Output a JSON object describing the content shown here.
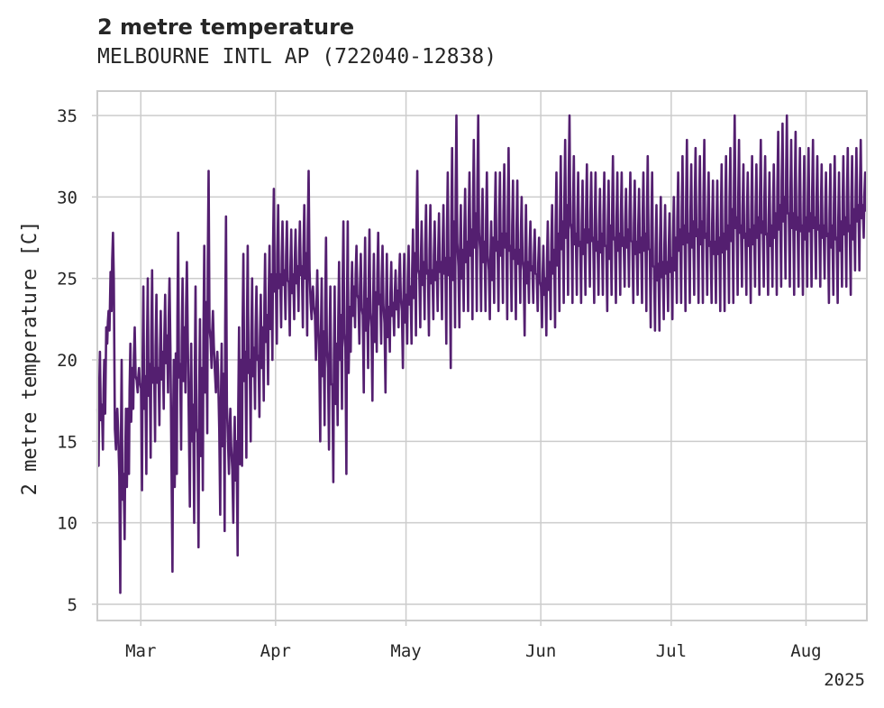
{
  "chart_data": {
    "type": "line",
    "title": "2 metre temperature",
    "subtitle": "MELBOURNE INTL AP (722040-12838)",
    "ylabel": "2 metre temperature [C]",
    "xlabel": "",
    "year_label": "2025",
    "xlim": [
      "2025-02-19",
      "2025-08-15"
    ],
    "ylim": [
      4,
      36.5
    ],
    "grid": true,
    "legend": "none",
    "line_color": "#541f70",
    "y_ticks": [
      5,
      10,
      15,
      20,
      25,
      30,
      35
    ],
    "x_ticks": [
      {
        "date": "2025-03-01",
        "label": "Mar"
      },
      {
        "date": "2025-04-01",
        "label": "Apr"
      },
      {
        "date": "2025-05-01",
        "label": "May"
      },
      {
        "date": "2025-06-01",
        "label": "Jun"
      },
      {
        "date": "2025-07-01",
        "label": "Jul"
      },
      {
        "date": "2025-08-01",
        "label": "Aug"
      }
    ],
    "series": [
      {
        "x": [
          "2025-02-19",
          "2025-02-20",
          "2025-02-21",
          "2025-02-22",
          "2025-02-23",
          "2025-02-24",
          "2025-02-25",
          "2025-02-26",
          "2025-02-27",
          "2025-02-28",
          "2025-03-01",
          "2025-03-02",
          "2025-03-03",
          "2025-03-04",
          "2025-03-05",
          "2025-03-06",
          "2025-03-07",
          "2025-03-08",
          "2025-03-09",
          "2025-03-10",
          "2025-03-11",
          "2025-03-12",
          "2025-03-13",
          "2025-03-14",
          "2025-03-15",
          "2025-03-16",
          "2025-03-17",
          "2025-03-18",
          "2025-03-19",
          "2025-03-20",
          "2025-03-21",
          "2025-03-22",
          "2025-03-23",
          "2025-03-24",
          "2025-03-25",
          "2025-03-26",
          "2025-03-27",
          "2025-03-28",
          "2025-03-29",
          "2025-03-30",
          "2025-03-31",
          "2025-04-01",
          "2025-04-02",
          "2025-04-03",
          "2025-04-04",
          "2025-04-05",
          "2025-04-06",
          "2025-04-07",
          "2025-04-08",
          "2025-04-09",
          "2025-04-10",
          "2025-04-11",
          "2025-04-12",
          "2025-04-13",
          "2025-04-14",
          "2025-04-15",
          "2025-04-16",
          "2025-04-17",
          "2025-04-18",
          "2025-04-19",
          "2025-04-20",
          "2025-04-21",
          "2025-04-22",
          "2025-04-23",
          "2025-04-24",
          "2025-04-25",
          "2025-04-26",
          "2025-04-27",
          "2025-04-28",
          "2025-04-29",
          "2025-04-30",
          "2025-05-01",
          "2025-05-02",
          "2025-05-03",
          "2025-05-04",
          "2025-05-05",
          "2025-05-06",
          "2025-05-07",
          "2025-05-08",
          "2025-05-09",
          "2025-05-10",
          "2025-05-11",
          "2025-05-12",
          "2025-05-13",
          "2025-05-14",
          "2025-05-15",
          "2025-05-16",
          "2025-05-17",
          "2025-05-18",
          "2025-05-19",
          "2025-05-20",
          "2025-05-21",
          "2025-05-22",
          "2025-05-23",
          "2025-05-24",
          "2025-05-25",
          "2025-05-26",
          "2025-05-27",
          "2025-05-28",
          "2025-05-29",
          "2025-05-30",
          "2025-05-31",
          "2025-06-01",
          "2025-06-02",
          "2025-06-03",
          "2025-06-04",
          "2025-06-05",
          "2025-06-06",
          "2025-06-07",
          "2025-06-08",
          "2025-06-09",
          "2025-06-10",
          "2025-06-11",
          "2025-06-12",
          "2025-06-13",
          "2025-06-14",
          "2025-06-15",
          "2025-06-16",
          "2025-06-17",
          "2025-06-18",
          "2025-06-19",
          "2025-06-20",
          "2025-06-21",
          "2025-06-22",
          "2025-06-23",
          "2025-06-24",
          "2025-06-25",
          "2025-06-26",
          "2025-06-27",
          "2025-06-28",
          "2025-06-29",
          "2025-06-30",
          "2025-07-01",
          "2025-07-02",
          "2025-07-03",
          "2025-07-04",
          "2025-07-05",
          "2025-07-06",
          "2025-07-07",
          "2025-07-08",
          "2025-07-09",
          "2025-07-10",
          "2025-07-11",
          "2025-07-12",
          "2025-07-13",
          "2025-07-14",
          "2025-07-15",
          "2025-07-16",
          "2025-07-17",
          "2025-07-18",
          "2025-07-19",
          "2025-07-20",
          "2025-07-21",
          "2025-07-22",
          "2025-07-23",
          "2025-07-24",
          "2025-07-25",
          "2025-07-26",
          "2025-07-27",
          "2025-07-28",
          "2025-07-29",
          "2025-07-30",
          "2025-07-31",
          "2025-08-01",
          "2025-08-02",
          "2025-08-03",
          "2025-08-04",
          "2025-08-05",
          "2025-08-06",
          "2025-08-07",
          "2025-08-08",
          "2025-08-09",
          "2025-08-10",
          "2025-08-11",
          "2025-08-12",
          "2025-08-13",
          "2025-08-14",
          "2025-08-15"
        ],
        "min": [
          13.5,
          14.5,
          21.0,
          23.0,
          14.5,
          5.7,
          9.0,
          13.0,
          17.0,
          18.0,
          12.0,
          13.0,
          14.0,
          15.0,
          16.0,
          17.0,
          18.0,
          7.0,
          13.0,
          14.5,
          18.0,
          11.0,
          10.0,
          8.5,
          12.0,
          15.5,
          19.5,
          18.0,
          10.5,
          9.5,
          13.0,
          10.0,
          8.0,
          13.5,
          14.0,
          15.0,
          17.0,
          16.5,
          17.5,
          18.5,
          20.0,
          21.0,
          22.0,
          22.5,
          21.5,
          22.5,
          23.0,
          22.0,
          21.5,
          22.5,
          20.0,
          15.0,
          16.0,
          14.5,
          12.5,
          16.0,
          17.0,
          13.0,
          20.5,
          22.0,
          21.0,
          18.0,
          19.5,
          17.5,
          20.5,
          21.0,
          18.0,
          20.5,
          21.5,
          22.0,
          19.5,
          21.0,
          21.0,
          21.5,
          22.0,
          22.5,
          21.5,
          22.5,
          23.0,
          22.5,
          21.0,
          19.5,
          22.0,
          22.0,
          23.0,
          23.0,
          22.5,
          23.0,
          23.0,
          23.0,
          22.5,
          23.5,
          23.0,
          23.5,
          22.5,
          23.0,
          22.5,
          23.5,
          21.5,
          23.5,
          23.5,
          23.0,
          22.0,
          21.5,
          22.5,
          22.0,
          23.0,
          23.5,
          24.0,
          23.5,
          24.0,
          23.5,
          24.0,
          24.5,
          23.5,
          24.0,
          24.0,
          23.0,
          24.0,
          23.5,
          24.0,
          24.5,
          24.5,
          23.5,
          24.0,
          23.5,
          23.0,
          22.0,
          21.8,
          21.8,
          22.5,
          23.0,
          22.5,
          23.5,
          23.5,
          23.0,
          23.5,
          24.0,
          23.5,
          23.5,
          24.0,
          23.5,
          23.5,
          23.0,
          23.0,
          23.5,
          23.5,
          24.0,
          24.5,
          24.0,
          23.5,
          24.5,
          24.0,
          24.5,
          24.0,
          24.5,
          24.0,
          24.5,
          25.0,
          24.5,
          24.0,
          24.5,
          24.0,
          24.5,
          24.5,
          25.0,
          24.5,
          25.0,
          23.5,
          24.0,
          23.5,
          24.5,
          24.5,
          24.0,
          25.5,
          25.5,
          27.5
        ],
        "max": [
          20.5,
          20.0,
          23.0,
          27.8,
          17.0,
          20.0,
          17.0,
          21.0,
          22.0,
          19.5,
          24.5,
          25.0,
          25.5,
          24.0,
          23.0,
          24.0,
          25.0,
          20.0,
          27.8,
          25.0,
          26.0,
          21.0,
          24.5,
          22.5,
          27.0,
          31.6,
          23.0,
          20.5,
          21.0,
          28.8,
          17.0,
          16.5,
          22.0,
          26.5,
          27.0,
          25.0,
          24.5,
          24.0,
          26.5,
          27.0,
          30.5,
          29.5,
          28.5,
          28.5,
          28.0,
          28.0,
          28.5,
          29.5,
          31.6,
          24.5,
          25.5,
          25.0,
          27.5,
          24.5,
          24.5,
          26.0,
          28.5,
          28.5,
          26.0,
          27.0,
          26.5,
          27.5,
          28.0,
          26.5,
          27.8,
          27.0,
          26.5,
          26.0,
          25.5,
          26.5,
          26.5,
          27.0,
          28.0,
          31.6,
          28.5,
          29.5,
          29.5,
          28.5,
          29.0,
          29.5,
          31.5,
          33.0,
          35.0,
          29.5,
          30.5,
          31.5,
          33.5,
          35.0,
          30.5,
          31.5,
          28.5,
          31.5,
          31.5,
          32.0,
          33.0,
          31.0,
          31.0,
          30.0,
          29.5,
          28.5,
          28.0,
          27.5,
          27.0,
          28.5,
          29.5,
          31.5,
          32.5,
          33.5,
          35.0,
          32.5,
          31.5,
          31.0,
          32.0,
          31.5,
          31.5,
          30.5,
          31.5,
          31.0,
          32.5,
          31.5,
          31.5,
          30.5,
          31.5,
          31.0,
          30.5,
          31.5,
          32.5,
          31.5,
          29.5,
          30.0,
          29.5,
          29.0,
          30.0,
          31.5,
          32.5,
          33.5,
          32.0,
          33.0,
          32.5,
          33.5,
          31.5,
          31.0,
          31.0,
          32.0,
          32.5,
          33.0,
          35.0,
          33.5,
          32.0,
          31.5,
          32.5,
          32.0,
          33.5,
          32.5,
          31.5,
          32.0,
          34.0,
          34.5,
          35.0,
          33.5,
          34.0,
          33.0,
          32.5,
          33.0,
          33.5,
          32.5,
          32.0,
          31.5,
          32.0,
          32.5,
          31.5,
          32.5,
          33.0,
          32.5,
          33.0,
          33.5,
          31.5
        ]
      }
    ]
  }
}
